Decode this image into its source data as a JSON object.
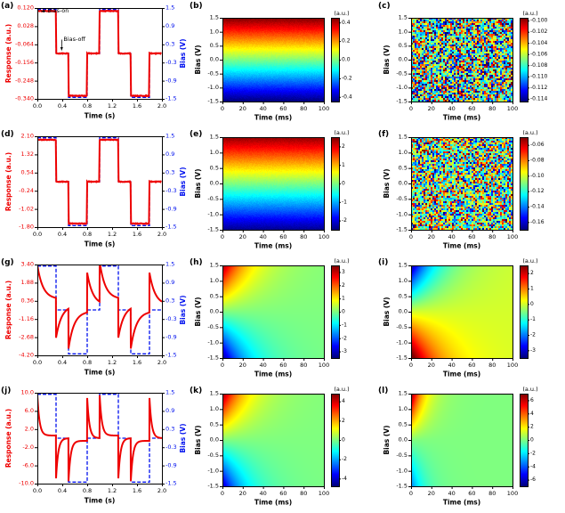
{
  "figure": {
    "bias_on_title": "Bias-on",
    "bias_off_title": "Bias-off",
    "colors": {
      "response": "#ee0000",
      "bias": "#0010ee",
      "axis": "#000000"
    }
  },
  "chart_data": [
    {
      "id": "a",
      "kind": "timeseries",
      "type": "line",
      "label": "(a)",
      "xlabel": "Time (s)",
      "xticks": [
        0.0,
        0.4,
        0.8,
        1.2,
        1.6,
        2.0
      ],
      "xfmt": 1,
      "xrange": [
        0,
        2
      ],
      "lylabel": "Response (a.u.)",
      "lticks": [
        0.12,
        0.028,
        -0.064,
        -0.156,
        -0.248,
        -0.34
      ],
      "lfmt": 3,
      "lrange": [
        -0.34,
        0.12
      ],
      "rylabel": "Bias (V)",
      "rticks": [
        1.5,
        0.9,
        0.3,
        -0.3,
        -0.9,
        -1.5
      ],
      "rfmt": 1,
      "rrange": [
        -1.5,
        1.5
      ],
      "bias_amp": 1.45,
      "segments": [
        [
          0,
          0.3,
          1
        ],
        [
          0.3,
          0.5,
          0
        ],
        [
          0.5,
          0.8,
          -1
        ],
        [
          0.8,
          1.0,
          0
        ],
        [
          1.0,
          1.3,
          1
        ],
        [
          1.3,
          1.5,
          0
        ],
        [
          1.5,
          1.8,
          -1
        ],
        [
          1.8,
          2.0,
          0
        ]
      ],
      "response": {
        "type": "linear",
        "gain": 0.148,
        "offset": -0.11
      },
      "annotations": [
        {
          "text": "Bias-on",
          "tx": 0.16,
          "ty": 0.104,
          "ax": 0.06,
          "ay": 0.1035
        },
        {
          "text": "Bias-off",
          "tx": 0.42,
          "ty": -0.04,
          "ax": 0.39,
          "ay": -0.095
        }
      ]
    },
    {
      "id": "b",
      "kind": "heatmap",
      "type": "heatmap",
      "label": "(b)",
      "xlabel": "Time (ms)",
      "xticks": [
        0,
        20,
        40,
        60,
        80,
        100
      ],
      "xfmt": 0,
      "xrange": [
        0,
        100
      ],
      "ylabel": "Bias (V)",
      "yticks": [
        1.5,
        1.0,
        0.5,
        0.0,
        -0.5,
        -1.0,
        -1.5
      ],
      "yfmt": 1,
      "yrange": [
        -1.5,
        1.5
      ],
      "cbar_label": "(a.u.)",
      "cticks": [
        0.4,
        0.2,
        0.0,
        -0.2,
        -0.4
      ],
      "cfmt": 1,
      "crange": [
        -0.45,
        0.45
      ],
      "model": {
        "type": "gradient",
        "amp": 0.45
      }
    },
    {
      "id": "c",
      "kind": "heatmap",
      "type": "heatmap",
      "label": "(c)",
      "xlabel": "Time (ms)",
      "xticks": [
        0,
        20,
        40,
        60,
        80,
        100
      ],
      "xfmt": 0,
      "xrange": [
        0,
        100
      ],
      "ylabel": "Bias (V)",
      "yticks": [
        1.5,
        1.0,
        0.5,
        0.0,
        -0.5,
        -1.0,
        -1.5
      ],
      "yfmt": 1,
      "yrange": [
        -1.5,
        1.5
      ],
      "cbar_label": "(a.u.)",
      "cticks": [
        -0.1,
        -0.102,
        -0.104,
        -0.106,
        -0.108,
        -0.11,
        -0.112,
        -0.114
      ],
      "cfmt": 3,
      "crange": [
        -0.1145,
        -0.0995
      ],
      "model": {
        "type": "noise",
        "center": -0.107,
        "spread": 0.008,
        "seed": 1
      }
    },
    {
      "id": "d",
      "kind": "timeseries",
      "type": "line",
      "label": "(d)",
      "xlabel": "Time (s)",
      "xticks": [
        0.0,
        0.4,
        0.8,
        1.2,
        1.6,
        2.0
      ],
      "xfmt": 1,
      "xrange": [
        0,
        2
      ],
      "lylabel": "Response (a.u.)",
      "lticks": [
        2.1,
        1.32,
        0.54,
        -0.24,
        -1.02,
        -1.8
      ],
      "lfmt": 2,
      "lrange": [
        -1.8,
        2.1
      ],
      "rylabel": "Bias (V)",
      "rticks": [
        1.5,
        0.9,
        0.3,
        -0.3,
        -0.9,
        -1.5
      ],
      "rfmt": 1,
      "rrange": [
        -1.5,
        1.5
      ],
      "bias_amp": 1.45,
      "segments": [
        [
          0,
          0.3,
          1
        ],
        [
          0.3,
          0.5,
          0
        ],
        [
          0.5,
          0.8,
          -1
        ],
        [
          0.8,
          1.0,
          0
        ],
        [
          1.0,
          1.3,
          1
        ],
        [
          1.3,
          1.5,
          0
        ],
        [
          1.5,
          1.8,
          -1
        ],
        [
          1.8,
          2.0,
          0
        ]
      ],
      "response": {
        "type": "linear",
        "gain": 1.24,
        "offset": 0.15
      },
      "annotations": []
    },
    {
      "id": "e",
      "kind": "heatmap",
      "type": "heatmap",
      "label": "(e)",
      "xlabel": "Time (ms)",
      "xticks": [
        0,
        20,
        40,
        60,
        80,
        100
      ],
      "xfmt": 0,
      "xrange": [
        0,
        100
      ],
      "ylabel": "Bias (V)",
      "yticks": [
        1.5,
        1.0,
        0.5,
        0.0,
        -0.5,
        -1.0,
        -1.5
      ],
      "yfmt": 1,
      "yrange": [
        -1.5,
        1.5
      ],
      "cbar_label": "(a.u.)",
      "cticks": [
        2,
        1,
        0,
        -1,
        -2
      ],
      "cfmt": 0,
      "crange": [
        -2.5,
        2.5
      ],
      "model": {
        "type": "gradient",
        "amp": 2.4
      }
    },
    {
      "id": "f",
      "kind": "heatmap",
      "type": "heatmap",
      "label": "(f)",
      "xlabel": "Time (ms)",
      "xticks": [
        0,
        20,
        40,
        60,
        80,
        100
      ],
      "xfmt": 0,
      "xrange": [
        0,
        100
      ],
      "ylabel": "Bias (V)",
      "yticks": [
        1.5,
        1.0,
        0.5,
        0.0,
        -0.5,
        -1.0,
        -1.5
      ],
      "yfmt": 1,
      "yrange": [
        -1.5,
        1.5
      ],
      "cbar_label": "(a.u.)",
      "cticks": [
        -0.06,
        -0.08,
        -0.1,
        -0.12,
        -0.14,
        -0.16
      ],
      "cfmt": 2,
      "crange": [
        -0.17,
        -0.05
      ],
      "model": {
        "type": "noise",
        "center": -0.11,
        "spread": 0.055,
        "seed": 2
      }
    },
    {
      "id": "g",
      "kind": "timeseries",
      "type": "line",
      "label": "(g)",
      "xlabel": "Time (s)",
      "xticks": [
        0.0,
        0.4,
        0.8,
        1.2,
        1.6,
        2.0
      ],
      "xfmt": 1,
      "xrange": [
        0,
        2
      ],
      "lylabel": "Response (a.u.)",
      "lticks": [
        3.4,
        1.88,
        0.36,
        -1.16,
        -2.68,
        -4.2
      ],
      "lfmt": 2,
      "lrange": [
        -4.2,
        3.4
      ],
      "rylabel": "Bias (V)",
      "rticks": [
        1.5,
        0.9,
        0.3,
        -0.3,
        -0.9,
        -1.5
      ],
      "rfmt": 1,
      "rrange": [
        -1.5,
        1.5
      ],
      "bias_amp": 1.45,
      "segments": [
        [
          0,
          0.3,
          1
        ],
        [
          0.3,
          0.5,
          0
        ],
        [
          0.5,
          0.8,
          -1
        ],
        [
          0.8,
          1.0,
          0
        ],
        [
          1.0,
          1.3,
          1
        ],
        [
          1.3,
          1.5,
          0
        ],
        [
          1.5,
          1.8,
          -1
        ],
        [
          1.8,
          2.0,
          0
        ]
      ],
      "response": {
        "type": "relax",
        "k": 2.3,
        "tau": 0.09,
        "steady_gain": 0.35
      },
      "annotations": []
    },
    {
      "id": "h",
      "kind": "heatmap",
      "type": "heatmap",
      "label": "(h)",
      "xlabel": "Time (ms)",
      "xticks": [
        0,
        20,
        40,
        60,
        80,
        100
      ],
      "xfmt": 0,
      "xrange": [
        0,
        100
      ],
      "ylabel": "Bias (V)",
      "yticks": [
        1.5,
        1.0,
        0.5,
        0.0,
        -0.5,
        -1.0,
        -1.5
      ],
      "yfmt": 1,
      "yrange": [
        -1.5,
        1.5
      ],
      "cbar_label": "(a.u.)",
      "cticks": [
        3,
        2,
        1,
        0,
        -1,
        -2,
        -3
      ],
      "cfmt": 0,
      "crange": [
        -3.5,
        3.5
      ],
      "model": {
        "type": "decay",
        "amp": 3.3,
        "tau": 25,
        "neg_scale": 1.0
      }
    },
    {
      "id": "i",
      "kind": "heatmap",
      "type": "heatmap",
      "label": "(i)",
      "xlabel": "Time (ms)",
      "xticks": [
        0,
        20,
        40,
        60,
        80,
        100
      ],
      "xfmt": 0,
      "xrange": [
        0,
        100
      ],
      "ylabel": "Bias (V)",
      "yticks": [
        1.5,
        1.0,
        0.5,
        0.0,
        -0.5,
        -1.0,
        -1.5
      ],
      "yfmt": 1,
      "yrange": [
        -1.5,
        1.5
      ],
      "cbar_label": "(a.u.)",
      "cticks": [
        2,
        1,
        0,
        -1,
        -2,
        -3
      ],
      "cfmt": 0,
      "crange": [
        -3.5,
        2.5
      ],
      "model": {
        "type": "decay",
        "amp": -3.3,
        "tau": 25,
        "neg_scale": 0.85
      }
    },
    {
      "id": "j",
      "kind": "timeseries",
      "type": "line",
      "label": "(j)",
      "xlabel": "Time (s)",
      "xticks": [
        0.0,
        0.4,
        0.8,
        1.2,
        1.6,
        2.0
      ],
      "xfmt": 1,
      "xrange": [
        0,
        2
      ],
      "lylabel": "Response (a.u.)",
      "lticks": [
        10.0,
        6.0,
        2.0,
        -2.0,
        -6.0,
        -10.0
      ],
      "lfmt": 1,
      "lrange": [
        -10.0,
        10.0
      ],
      "rylabel": "Bias (V)",
      "rticks": [
        1.5,
        0.9,
        0.3,
        -0.3,
        -0.9,
        -1.5
      ],
      "rfmt": 1,
      "rrange": [
        -1.5,
        1.5
      ],
      "bias_amp": 1.45,
      "segments": [
        [
          0,
          0.3,
          1
        ],
        [
          0.3,
          0.5,
          0
        ],
        [
          0.5,
          0.8,
          -1
        ],
        [
          0.8,
          1.0,
          0
        ],
        [
          1.0,
          1.3,
          1
        ],
        [
          1.3,
          1.5,
          0
        ],
        [
          1.5,
          1.8,
          -1
        ],
        [
          1.8,
          2.0,
          0
        ]
      ],
      "response": {
        "type": "relax",
        "k": 6.5,
        "tau": 0.035,
        "steady_gain": 0.4
      },
      "annotations": []
    },
    {
      "id": "k",
      "kind": "heatmap",
      "type": "heatmap",
      "label": "(k)",
      "xlabel": "Time (ms)",
      "xticks": [
        0,
        20,
        40,
        60,
        80,
        100
      ],
      "xfmt": 0,
      "xrange": [
        0,
        100
      ],
      "ylabel": "Bias (V)",
      "yticks": [
        1.5,
        1.0,
        0.5,
        0.0,
        -0.5,
        -1.0,
        -1.5
      ],
      "yfmt": 1,
      "yrange": [
        -1.5,
        1.5
      ],
      "cbar_label": "(a.u.)",
      "cticks": [
        4,
        2,
        0,
        -2,
        -4
      ],
      "cfmt": 0,
      "crange": [
        -4.8,
        4.8
      ],
      "model": {
        "type": "decay",
        "amp": 4.6,
        "tau": 22,
        "neg_scale": 0.9
      }
    },
    {
      "id": "l",
      "kind": "heatmap",
      "type": "heatmap",
      "label": "(l)",
      "xlabel": "Time (ms)",
      "xticks": [
        0,
        20,
        40,
        60,
        80,
        100
      ],
      "xfmt": 0,
      "xrange": [
        0,
        100
      ],
      "ylabel": "Bias (V)",
      "yticks": [
        1.5,
        1.0,
        0.5,
        0.0,
        -0.5,
        -1.0,
        -1.5
      ],
      "yfmt": 1,
      "yrange": [
        -1.5,
        1.5
      ],
      "cbar_label": "(a.u.)",
      "cticks": [
        6,
        4,
        2,
        0,
        -2,
        -4,
        -6
      ],
      "cfmt": 0,
      "crange": [
        -7,
        7
      ],
      "model": {
        "type": "decay",
        "amp": 7.0,
        "tau": 12,
        "neg_scale": 0.5
      }
    }
  ]
}
